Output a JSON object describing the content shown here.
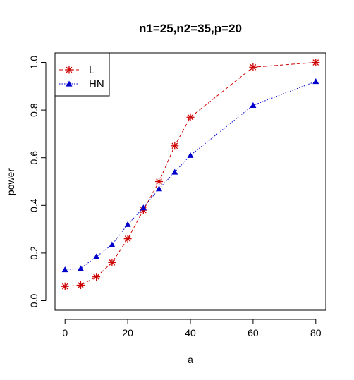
{
  "chart_data": {
    "type": "line",
    "title": "n1=25,n2=35,p=20",
    "xlabel": "a",
    "ylabel": "power",
    "xlim": [
      -3.2,
      83.2
    ],
    "ylim": [
      -0.04,
      1.04
    ],
    "xticks": [
      0,
      20,
      40,
      60,
      80
    ],
    "yticks": [
      0.0,
      0.2,
      0.4,
      0.6,
      0.8,
      1.0
    ],
    "xtick_labels": [
      "0",
      "20",
      "40",
      "60",
      "80"
    ],
    "ytick_labels": [
      "0.0",
      "0.2",
      "0.4",
      "0.6",
      "0.8",
      "1.0"
    ],
    "grid": false,
    "legend_position": "top-left",
    "x": [
      0,
      5,
      10,
      15,
      20,
      25,
      30,
      35,
      40,
      60,
      80
    ],
    "series": [
      {
        "name": "L",
        "color": "#CC0000",
        "marker": "asterisk",
        "line_style": "dashed",
        "values": [
          0.06,
          0.065,
          0.1,
          0.16,
          0.26,
          0.38,
          0.5,
          0.65,
          0.77,
          0.98,
          1.0
        ]
      },
      {
        "name": "HN",
        "color": "#0000CC",
        "marker": "triangle",
        "line_style": "dotted",
        "values": [
          0.13,
          0.135,
          0.185,
          0.235,
          0.32,
          0.39,
          0.47,
          0.54,
          0.61,
          0.82,
          0.92
        ]
      }
    ]
  }
}
